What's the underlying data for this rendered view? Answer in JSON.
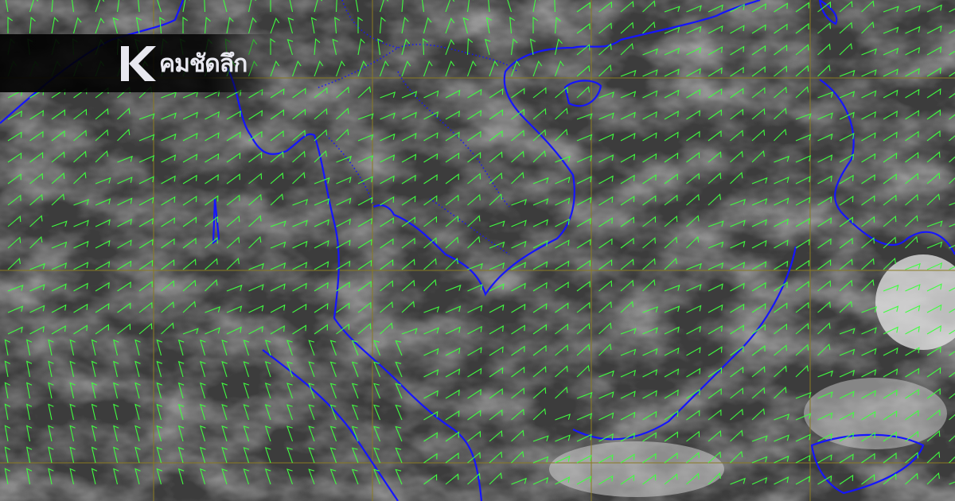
{
  "map": {
    "type": "infrared satellite image with wind barbs",
    "colors": {
      "coastline": "#1010ff",
      "wind_barbs": "#40ff40",
      "grid": "#8a7a20",
      "cloud": "#d8d8d8"
    }
  },
  "logo": {
    "icon": "k-logo-icon",
    "text": "คมชัดลึก"
  }
}
